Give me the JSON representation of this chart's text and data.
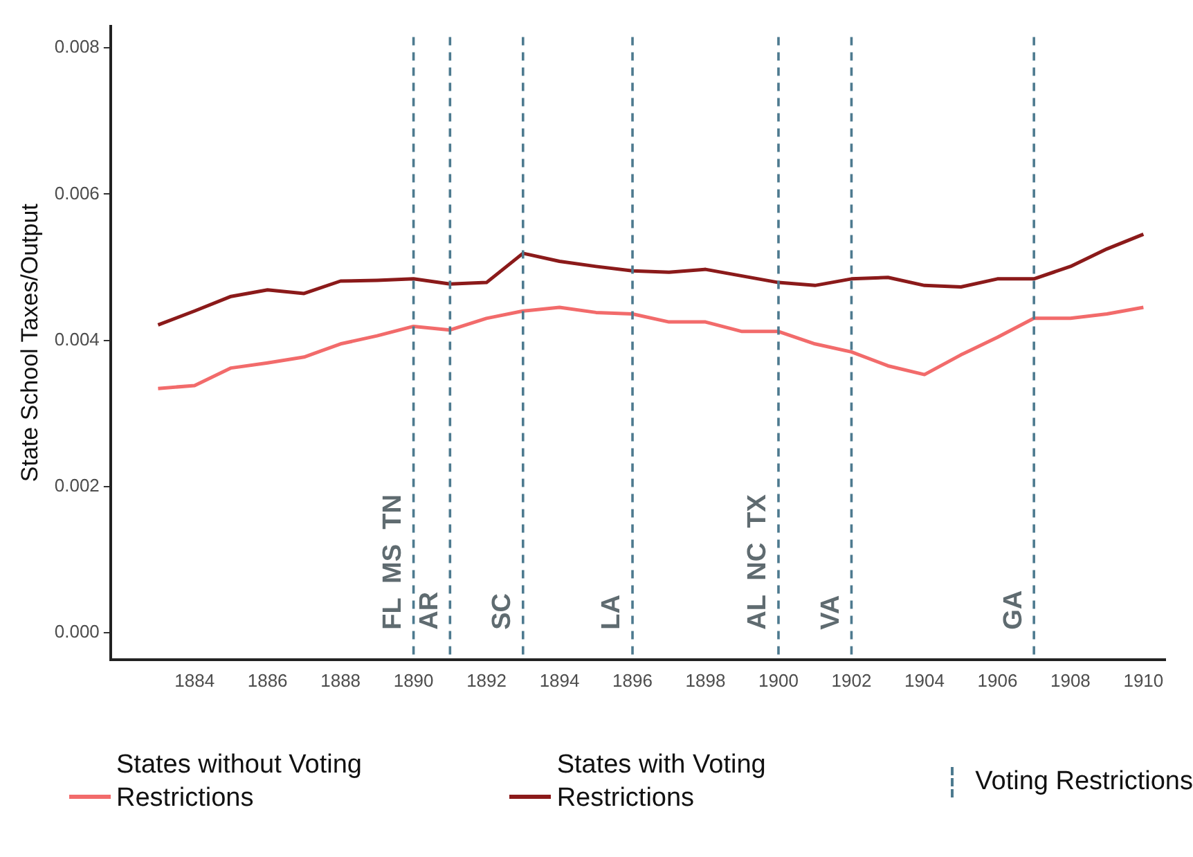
{
  "chart_data": {
    "type": "line",
    "ylabel": "State School Taxes/Output",
    "x": [
      1883,
      1884,
      1885,
      1886,
      1887,
      1888,
      1889,
      1890,
      1891,
      1892,
      1893,
      1894,
      1895,
      1896,
      1897,
      1898,
      1899,
      1900,
      1901,
      1902,
      1903,
      1904,
      1905,
      1906,
      1907,
      1908,
      1909,
      1910
    ],
    "series": [
      {
        "name": "States without Voting Restrictions",
        "color": "#f26b6b",
        "values": [
          0.00334,
          0.00338,
          0.00362,
          0.00369,
          0.00377,
          0.00395,
          0.00406,
          0.00419,
          0.00414,
          0.0043,
          0.0044,
          0.00445,
          0.00438,
          0.00436,
          0.00425,
          0.00425,
          0.00412,
          0.00412,
          0.00395,
          0.00384,
          0.00365,
          0.00353,
          0.0038,
          0.00404,
          0.0043,
          0.0043,
          0.00436,
          0.00445
        ]
      },
      {
        "name": "States with Voting Restrictions",
        "color": "#8b1a1a",
        "values": [
          0.00421,
          0.0044,
          0.0046,
          0.00469,
          0.00464,
          0.00481,
          0.00482,
          0.00484,
          0.00477,
          0.00479,
          0.00519,
          0.00508,
          0.00501,
          0.00495,
          0.00493,
          0.00497,
          0.00488,
          0.00479,
          0.00475,
          0.00484,
          0.00486,
          0.00475,
          0.00473,
          0.00484,
          0.00484,
          0.00501,
          0.00525,
          0.00545
        ]
      }
    ],
    "xlim": [
      1881.7,
      1910.6
    ],
    "xticks": [
      1884,
      1886,
      1888,
      1890,
      1892,
      1894,
      1896,
      1898,
      1900,
      1902,
      1904,
      1906,
      1908,
      1910
    ],
    "ylim": [
      -0.00037,
      0.0083
    ],
    "yticks": [
      {
        "value": 0,
        "label": "0.000"
      },
      {
        "value": 0.002,
        "label": "0.002"
      },
      {
        "value": 0.004,
        "label": "0.004"
      },
      {
        "value": 0.006,
        "label": "0.006"
      },
      {
        "value": 0.008,
        "label": "0.008"
      }
    ],
    "ref_lines": [
      {
        "axis": "x",
        "value": 1890,
        "label": "FL  MS  TN",
        "color": "#4d7a8f",
        "line_style": "dashed"
      },
      {
        "axis": "x",
        "value": 1891,
        "label": "AR",
        "color": "#4d7a8f",
        "line_style": "dashed"
      },
      {
        "axis": "x",
        "value": 1893,
        "label": "SC",
        "color": "#4d7a8f",
        "line_style": "dashed"
      },
      {
        "axis": "x",
        "value": 1896,
        "label": "LA",
        "color": "#4d7a8f",
        "line_style": "dashed"
      },
      {
        "axis": "x",
        "value": 1900,
        "label": "AL  NC  TX",
        "color": "#4d7a8f",
        "line_style": "dashed"
      },
      {
        "axis": "x",
        "value": 1902,
        "label": "VA",
        "color": "#4d7a8f",
        "line_style": "dashed"
      },
      {
        "axis": "x",
        "value": 1907,
        "label": "GA",
        "color": "#4d7a8f",
        "line_style": "dashed"
      }
    ],
    "annotations": [
      "Voting Restrictions"
    ],
    "grid": false,
    "legend": "bottom",
    "marker": "none",
    "line_style": "solid"
  }
}
